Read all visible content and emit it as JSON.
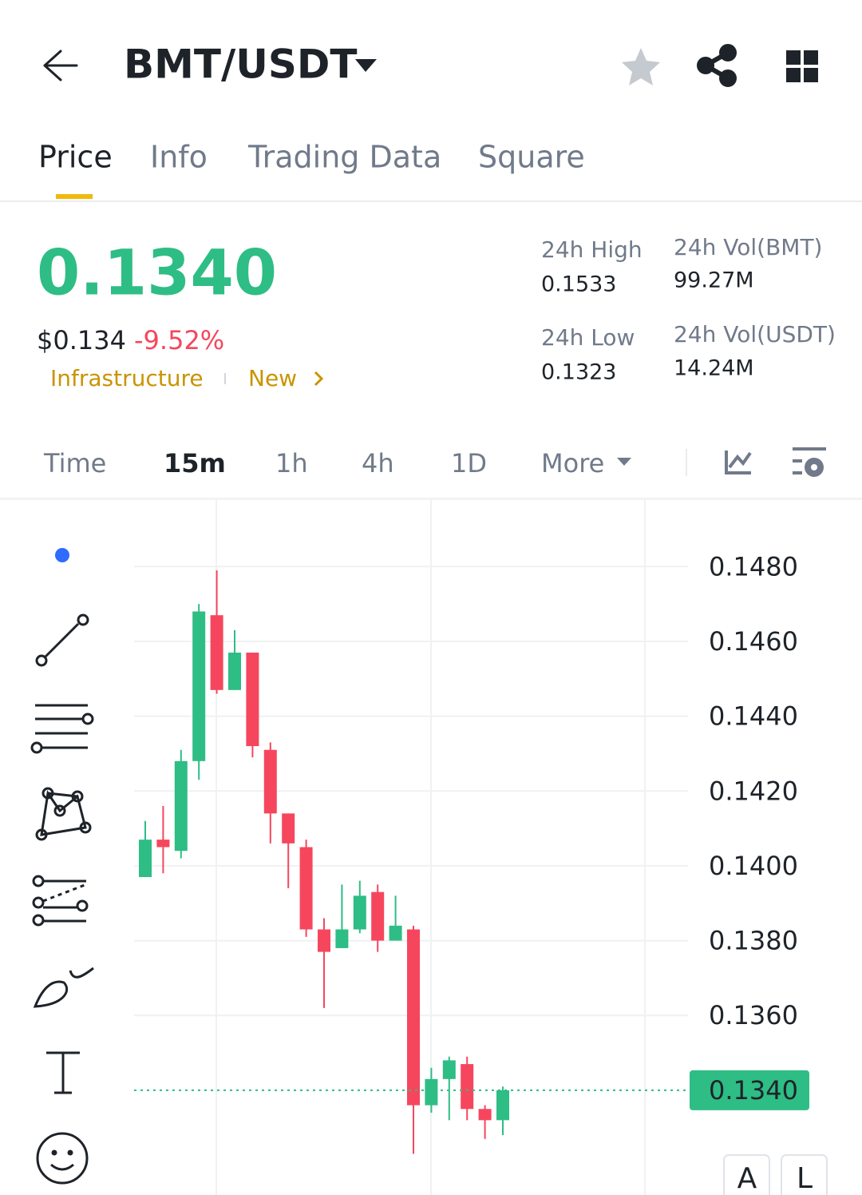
{
  "header": {
    "pair": "BMT/USDT"
  },
  "tabs": [
    "Price",
    "Info",
    "Trading Data",
    "Square"
  ],
  "price": {
    "last": "0.1340",
    "usd": "$0.134",
    "change": "-9.52%",
    "tags": [
      "Infrastructure",
      "New"
    ]
  },
  "stats": [
    {
      "label": "24h High",
      "value": "0.1533"
    },
    {
      "label": "24h Vol(BMT)",
      "value": "99.27M"
    },
    {
      "label": "24h Low",
      "value": "0.1323"
    },
    {
      "label": "24h Vol(USDT)",
      "value": "14.24M"
    }
  ],
  "intervals": [
    "Time",
    "15m",
    "1h",
    "4h",
    "1D",
    "More"
  ],
  "chart": {
    "type": "candlestick",
    "up_color": "#2ebd85",
    "down_color": "#f6465d",
    "ylim": [
      0.1312,
      0.1498
    ],
    "yticks": [
      {
        "value": 0.148,
        "label": "0.1480"
      },
      {
        "value": 0.146,
        "label": "0.1460"
      },
      {
        "value": 0.144,
        "label": "0.1440"
      },
      {
        "value": 0.142,
        "label": "0.1420"
      },
      {
        "value": 0.14,
        "label": "0.1400"
      },
      {
        "value": 0.138,
        "label": "0.1380"
      },
      {
        "value": 0.136,
        "label": "0.1360"
      }
    ],
    "grid": true,
    "last_price": {
      "value": 0.134,
      "label": "0.1340"
    },
    "candles": [
      {
        "open": 0.1397,
        "high": 0.1412,
        "low": 0.1397,
        "close": 0.1407
      },
      {
        "open": 0.1407,
        "high": 0.1416,
        "low": 0.1398,
        "close": 0.1405
      },
      {
        "open": 0.1404,
        "high": 0.1431,
        "low": 0.1402,
        "close": 0.1428
      },
      {
        "open": 0.1428,
        "high": 0.147,
        "low": 0.1423,
        "close": 0.1468
      },
      {
        "open": 0.1467,
        "high": 0.1479,
        "low": 0.1446,
        "close": 0.1447
      },
      {
        "open": 0.1447,
        "high": 0.1463,
        "low": 0.1447,
        "close": 0.1457
      },
      {
        "open": 0.1457,
        "high": 0.1457,
        "low": 0.1429,
        "close": 0.1432
      },
      {
        "open": 0.1431,
        "high": 0.1433,
        "low": 0.1406,
        "close": 0.1414
      },
      {
        "open": 0.1414,
        "high": 0.1414,
        "low": 0.1394,
        "close": 0.1406
      },
      {
        "open": 0.1405,
        "high": 0.1407,
        "low": 0.1381,
        "close": 0.1383
      },
      {
        "open": 0.1383,
        "high": 0.1386,
        "low": 0.1362,
        "close": 0.1377
      },
      {
        "open": 0.1378,
        "high": 0.1395,
        "low": 0.1378,
        "close": 0.1383
      },
      {
        "open": 0.1383,
        "high": 0.1396,
        "low": 0.1382,
        "close": 0.1392
      },
      {
        "open": 0.1393,
        "high": 0.1395,
        "low": 0.1377,
        "close": 0.138
      },
      {
        "open": 0.138,
        "high": 0.1392,
        "low": 0.138,
        "close": 0.1384
      },
      {
        "open": 0.1383,
        "high": 0.1384,
        "low": 0.1323,
        "close": 0.1336
      },
      {
        "open": 0.1336,
        "high": 0.1346,
        "low": 0.1334,
        "close": 0.1343
      },
      {
        "open": 0.1343,
        "high": 0.1349,
        "low": 0.1332,
        "close": 0.1348
      },
      {
        "open": 0.1347,
        "high": 0.1349,
        "low": 0.1332,
        "close": 0.1335
      },
      {
        "open": 0.1335,
        "high": 0.1336,
        "low": 0.1327,
        "close": 0.1332
      },
      {
        "open": 0.1332,
        "high": 0.1341,
        "low": 0.1328,
        "close": 0.134
      }
    ]
  },
  "scale_buttons": [
    "A",
    "L"
  ]
}
